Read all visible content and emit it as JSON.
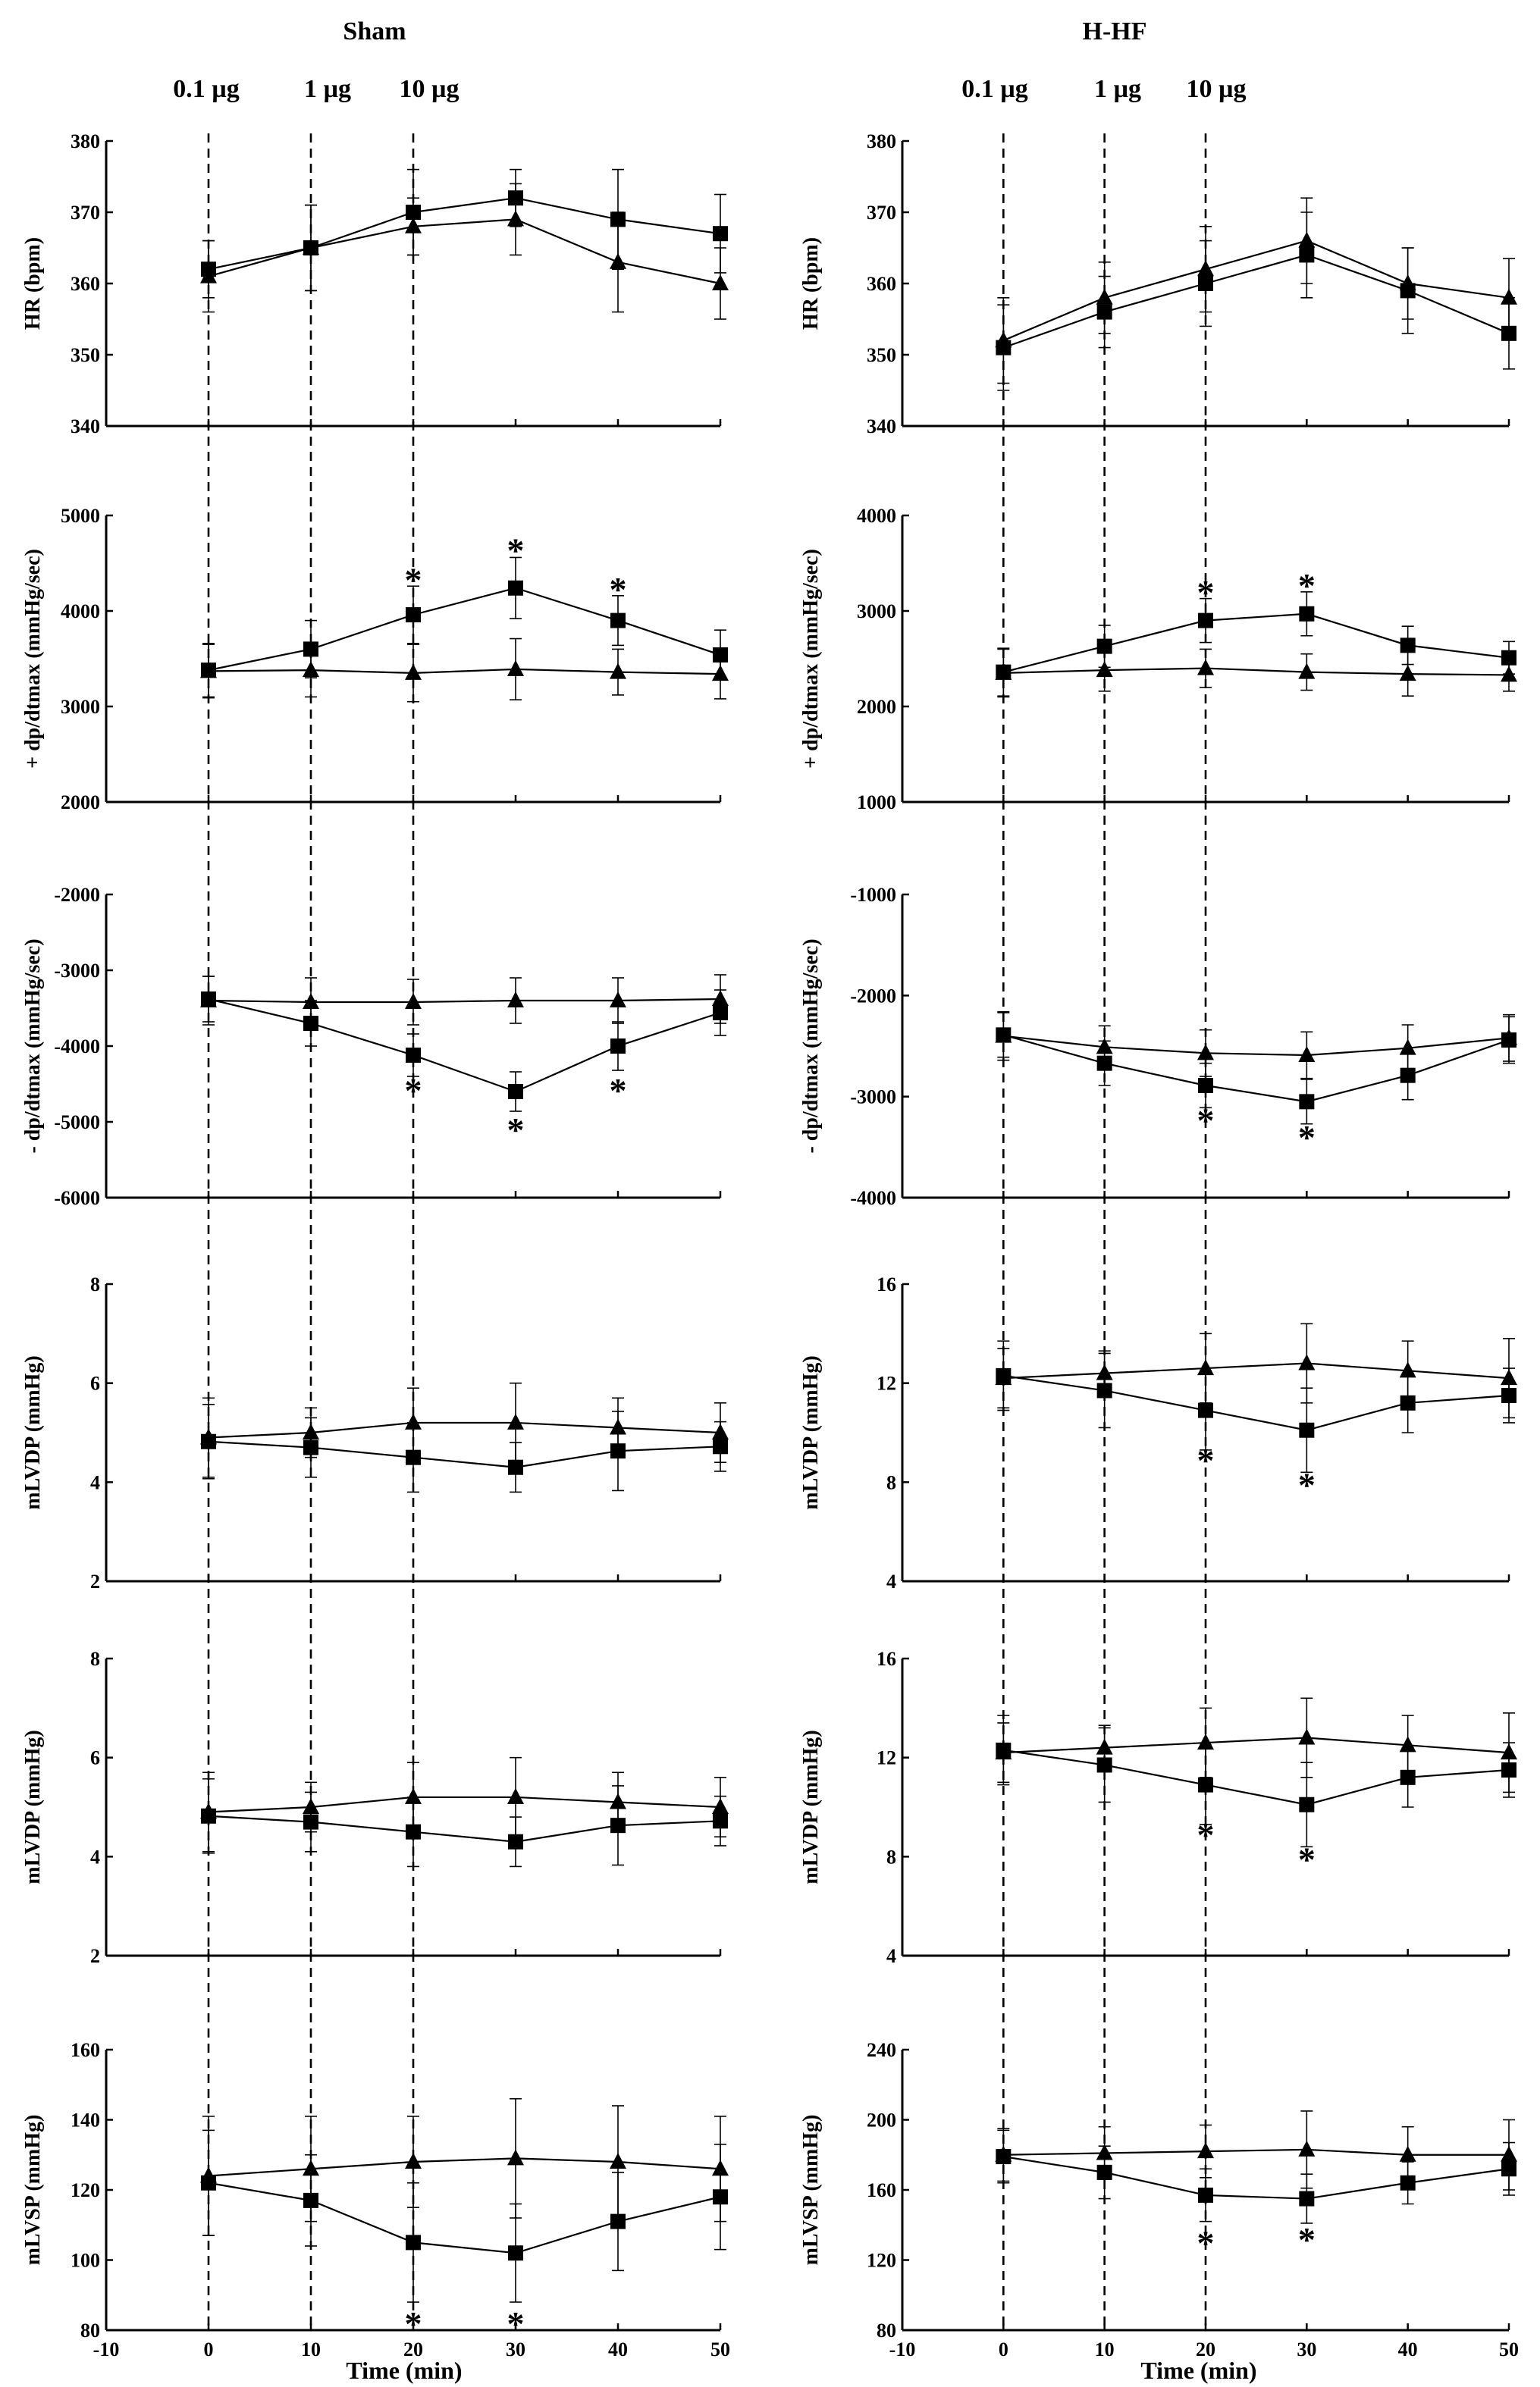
{
  "columns": [
    {
      "title": "Sham",
      "doses": [
        "0.1 µg",
        "1 µg",
        "10 µg"
      ]
    },
    {
      "title": "H-HF",
      "doses": [
        "0.1 µg",
        "1 µg",
        "10 µg"
      ]
    }
  ],
  "xlabel": "Time (min)",
  "chart_data": [
    {
      "type": "line",
      "panel": "sham-hr",
      "ylabel": "HR (bpm)",
      "ylim": [
        340,
        380
      ],
      "yticks": [
        340,
        350,
        360,
        370,
        380
      ],
      "xlim": [
        -10,
        50
      ],
      "xticks": [],
      "dose_lines_x": [
        0,
        10,
        20
      ],
      "x": [
        0,
        10,
        20,
        30,
        40,
        50
      ],
      "series": [
        {
          "marker": "square",
          "values": [
            362,
            365,
            370,
            372,
            369,
            367
          ],
          "err": [
            4,
            6,
            6,
            4,
            7,
            5.5
          ]
        },
        {
          "marker": "triangle",
          "values": [
            361,
            365,
            368,
            369,
            363,
            360
          ],
          "err": [
            5,
            6,
            4,
            5,
            7,
            5
          ]
        }
      ],
      "annotations": []
    },
    {
      "type": "line",
      "panel": "sham-plus-dpdt",
      "ylabel": "+ dp/dtmax (mmHg/sec)",
      "ylim": [
        2000,
        5000
      ],
      "yticks": [
        2000,
        3000,
        4000,
        5000
      ],
      "xlim": [
        -10,
        50
      ],
      "xticks": [],
      "dose_lines_x": [
        0,
        10,
        20
      ],
      "x": [
        0,
        10,
        20,
        30,
        40,
        50
      ],
      "series": [
        {
          "marker": "square",
          "values": [
            3380,
            3600,
            3960,
            4240,
            3900,
            3540
          ],
          "err": [
            280,
            300,
            300,
            320,
            260,
            260
          ]
        },
        {
          "marker": "triangle",
          "values": [
            3370,
            3380,
            3350,
            3390,
            3360,
            3340
          ],
          "err": [
            280,
            280,
            300,
            320,
            240,
            260
          ]
        }
      ],
      "annotations": [
        {
          "text": "*",
          "x": 20,
          "y": 4330
        },
        {
          "text": "*",
          "x": 30,
          "y": 4640
        },
        {
          "text": "*",
          "x": 40,
          "y": 4230
        }
      ]
    },
    {
      "type": "line",
      "panel": "sham-minus-dpdt",
      "ylabel": "- dp/dtmax (mmHg/sec)",
      "ylim": [
        -6000,
        -2000
      ],
      "yticks": [
        -6000,
        -5000,
        -4000,
        -3000,
        -2000
      ],
      "xlim": [
        -10,
        50
      ],
      "xticks": [],
      "dose_lines_x": [
        0,
        10,
        20
      ],
      "x": [
        0,
        10,
        20,
        30,
        40,
        50
      ],
      "series": [
        {
          "marker": "square",
          "values": [
            -3380,
            -3700,
            -4120,
            -4600,
            -4000,
            -3560
          ],
          "err": [
            300,
            300,
            280,
            260,
            320,
            300
          ]
        },
        {
          "marker": "triangle",
          "values": [
            -3400,
            -3420,
            -3420,
            -3400,
            -3400,
            -3380
          ],
          "err": [
            320,
            320,
            300,
            300,
            300,
            320
          ]
        }
      ],
      "annotations": [
        {
          "text": "*",
          "x": 20,
          "y": -4580
        },
        {
          "text": "*",
          "x": 30,
          "y": -5100
        },
        {
          "text": "*",
          "x": 40,
          "y": -4580
        }
      ]
    },
    {
      "type": "line",
      "panel": "sham-mlvdp-1",
      "ylabel": "mLVDP (mmHg)",
      "ylim": [
        2,
        8
      ],
      "yticks": [
        2,
        4,
        6,
        8
      ],
      "xlim": [
        -10,
        50
      ],
      "xticks": [],
      "dose_lines_x": [
        0,
        10,
        20
      ],
      "x": [
        0,
        10,
        20,
        30,
        40,
        50
      ],
      "series": [
        {
          "marker": "square",
          "values": [
            4.82,
            4.7,
            4.5,
            4.3,
            4.63,
            4.72
          ],
          "err": [
            0.75,
            0.6,
            0.7,
            0.5,
            0.8,
            0.5
          ]
        },
        {
          "marker": "triangle",
          "values": [
            4.9,
            5.0,
            5.2,
            5.2,
            5.1,
            5.0
          ],
          "err": [
            0.8,
            0.5,
            0.7,
            0.8,
            0.6,
            0.6
          ]
        }
      ],
      "annotations": []
    },
    {
      "type": "line",
      "panel": "sham-mlvdp-2",
      "ylabel": "mLVDP (mmHg)",
      "ylim": [
        2,
        8
      ],
      "yticks": [
        2,
        4,
        6,
        8
      ],
      "xlim": [
        -10,
        50
      ],
      "xticks": [],
      "dose_lines_x": [
        0,
        10,
        20
      ],
      "x": [
        0,
        10,
        20,
        30,
        40,
        50
      ],
      "series": [
        {
          "marker": "square",
          "values": [
            4.82,
            4.7,
            4.5,
            4.3,
            4.63,
            4.72
          ],
          "err": [
            0.75,
            0.6,
            0.7,
            0.5,
            0.8,
            0.5
          ]
        },
        {
          "marker": "triangle",
          "values": [
            4.9,
            5.0,
            5.2,
            5.2,
            5.1,
            5.0
          ],
          "err": [
            0.8,
            0.5,
            0.7,
            0.8,
            0.6,
            0.6
          ]
        }
      ],
      "annotations": []
    },
    {
      "type": "line",
      "panel": "sham-mlvsp",
      "ylabel": "mLVSP (mmHg)",
      "ylim": [
        80,
        160
      ],
      "yticks": [
        80,
        100,
        120,
        140,
        160
      ],
      "xlim": [
        -10,
        50
      ],
      "xticks": [
        -10,
        0,
        10,
        20,
        30,
        40,
        50
      ],
      "dose_lines_x": [
        0,
        10,
        20
      ],
      "x": [
        0,
        10,
        20,
        30,
        40,
        50
      ],
      "series": [
        {
          "marker": "square",
          "values": [
            122,
            117,
            105,
            102,
            111,
            118
          ],
          "err": [
            15,
            13,
            17,
            14,
            14,
            15
          ]
        },
        {
          "marker": "triangle",
          "values": [
            124,
            126,
            128,
            129,
            128,
            126
          ],
          "err": [
            17,
            15,
            13,
            17,
            16,
            15
          ]
        }
      ],
      "annotations": [
        {
          "text": "*",
          "x": 20,
          "y": 82
        },
        {
          "text": "*",
          "x": 30,
          "y": 82
        }
      ]
    },
    {
      "type": "line",
      "panel": "hhf-hr",
      "ylabel": "HR (bpm)",
      "ylim": [
        340,
        380
      ],
      "yticks": [
        340,
        350,
        360,
        370,
        380
      ],
      "xlim": [
        -10,
        50
      ],
      "xticks": [],
      "dose_lines_x": [
        0,
        10,
        20
      ],
      "x": [
        0,
        10,
        20,
        30,
        40,
        50
      ],
      "series": [
        {
          "marker": "square",
          "values": [
            351,
            356,
            360,
            364,
            359,
            353
          ],
          "err": [
            6,
            5,
            6,
            6,
            6,
            5
          ]
        },
        {
          "marker": "triangle",
          "values": [
            352,
            358,
            362,
            366,
            360,
            358
          ],
          "err": [
            6,
            5,
            6,
            6,
            5,
            5.5
          ]
        }
      ],
      "annotations": []
    },
    {
      "type": "line",
      "panel": "hhf-plus-dpdt",
      "ylabel": "+ dp/dtmax (mmHg/sec)",
      "ylim": [
        1000,
        4000
      ],
      "yticks": [
        1000,
        2000,
        3000,
        4000
      ],
      "xlim": [
        -10,
        50
      ],
      "xticks": [],
      "dose_lines_x": [
        0,
        10,
        20
      ],
      "x": [
        0,
        10,
        20,
        30,
        40,
        50
      ],
      "series": [
        {
          "marker": "square",
          "values": [
            2360,
            2630,
            2900,
            2970,
            2640,
            2510
          ],
          "err": [
            250,
            220,
            230,
            230,
            200,
            170
          ]
        },
        {
          "marker": "triangle",
          "values": [
            2350,
            2380,
            2400,
            2360,
            2340,
            2330
          ],
          "err": [
            250,
            220,
            200,
            190,
            230,
            170
          ]
        }
      ],
      "annotations": [
        {
          "text": "*",
          "x": 20,
          "y": 3200
        },
        {
          "text": "*",
          "x": 30,
          "y": 3270
        }
      ]
    },
    {
      "type": "line",
      "panel": "hhf-minus-dpdt",
      "ylabel": "- dp/dtmax (mmHg/sec)",
      "ylim": [
        -4000,
        -1000
      ],
      "yticks": [
        -4000,
        -3000,
        -2000,
        -1000
      ],
      "xlim": [
        -10,
        50
      ],
      "xticks": [],
      "dose_lines_x": [
        0,
        10,
        20
      ],
      "x": [
        0,
        10,
        20,
        30,
        40,
        50
      ],
      "series": [
        {
          "marker": "square",
          "values": [
            -2390,
            -2670,
            -2890,
            -3050,
            -2790,
            -2440
          ],
          "err": [
            220,
            220,
            220,
            220,
            240,
            230
          ]
        },
        {
          "marker": "triangle",
          "values": [
            -2400,
            -2510,
            -2570,
            -2590,
            -2520,
            -2420
          ],
          "err": [
            240,
            210,
            230,
            230,
            230,
            230
          ]
        }
      ],
      "annotations": [
        {
          "text": "*",
          "x": 20,
          "y": -3230
        },
        {
          "text": "*",
          "x": 30,
          "y": -3400
        }
      ]
    },
    {
      "type": "line",
      "panel": "hhf-mlvdp-1",
      "ylabel": "mLVDP (mmHg)",
      "ylim": [
        4,
        16
      ],
      "yticks": [
        4,
        8,
        12,
        16
      ],
      "xlim": [
        -10,
        50
      ],
      "xticks": [],
      "dose_lines_x": [
        0,
        10,
        20
      ],
      "x": [
        0,
        10,
        20,
        30,
        40,
        50
      ],
      "series": [
        {
          "marker": "square",
          "values": [
            12.3,
            11.7,
            10.9,
            10.1,
            11.2,
            11.5
          ],
          "err": [
            1.4,
            1.5,
            1.6,
            1.7,
            1.2,
            1.1
          ]
        },
        {
          "marker": "triangle",
          "values": [
            12.2,
            12.4,
            12.6,
            12.8,
            12.5,
            12.2
          ],
          "err": [
            1.2,
            0.9,
            1.4,
            1.6,
            1.2,
            1.6
          ]
        }
      ],
      "annotations": [
        {
          "text": "*",
          "x": 20,
          "y": 8.9
        },
        {
          "text": "*",
          "x": 30,
          "y": 7.9
        }
      ]
    },
    {
      "type": "line",
      "panel": "hhf-mlvdp-2",
      "ylabel": "mLVDP (mmHg)",
      "ylim": [
        4,
        16
      ],
      "yticks": [
        4,
        8,
        12,
        16
      ],
      "xlim": [
        -10,
        50
      ],
      "xticks": [],
      "dose_lines_x": [
        0,
        10,
        20
      ],
      "x": [
        0,
        10,
        20,
        30,
        40,
        50
      ],
      "series": [
        {
          "marker": "square",
          "values": [
            12.3,
            11.7,
            10.9,
            10.1,
            11.2,
            11.5
          ],
          "err": [
            1.4,
            1.5,
            1.6,
            1.7,
            1.2,
            1.1
          ]
        },
        {
          "marker": "triangle",
          "values": [
            12.2,
            12.4,
            12.6,
            12.8,
            12.5,
            12.2
          ],
          "err": [
            1.2,
            0.9,
            1.4,
            1.6,
            1.2,
            1.6
          ]
        }
      ],
      "annotations": [
        {
          "text": "*",
          "x": 20,
          "y": 8.9
        },
        {
          "text": "*",
          "x": 30,
          "y": 7.9
        }
      ]
    },
    {
      "type": "line",
      "panel": "hhf-mlvsp",
      "ylabel": "mLVSP (mmHg)",
      "ylim": [
        80,
        240
      ],
      "yticks": [
        80,
        120,
        160,
        200,
        240
      ],
      "xlim": [
        -10,
        50
      ],
      "xticks": [
        -10,
        0,
        10,
        20,
        30,
        40,
        50
      ],
      "dose_lines_x": [
        0,
        10,
        20
      ],
      "x": [
        0,
        10,
        20,
        30,
        40,
        50
      ],
      "series": [
        {
          "marker": "square",
          "values": [
            179,
            170,
            157,
            155,
            164,
            172
          ],
          "err": [
            15,
            15,
            15,
            14,
            12,
            15
          ]
        },
        {
          "marker": "triangle",
          "values": [
            180,
            181,
            182,
            183,
            180,
            180
          ],
          "err": [
            15,
            15,
            15,
            22,
            16,
            20
          ]
        }
      ],
      "annotations": [
        {
          "text": "*",
          "x": 20,
          "y": 130
        },
        {
          "text": "*",
          "x": 30,
          "y": 132
        }
      ]
    }
  ]
}
